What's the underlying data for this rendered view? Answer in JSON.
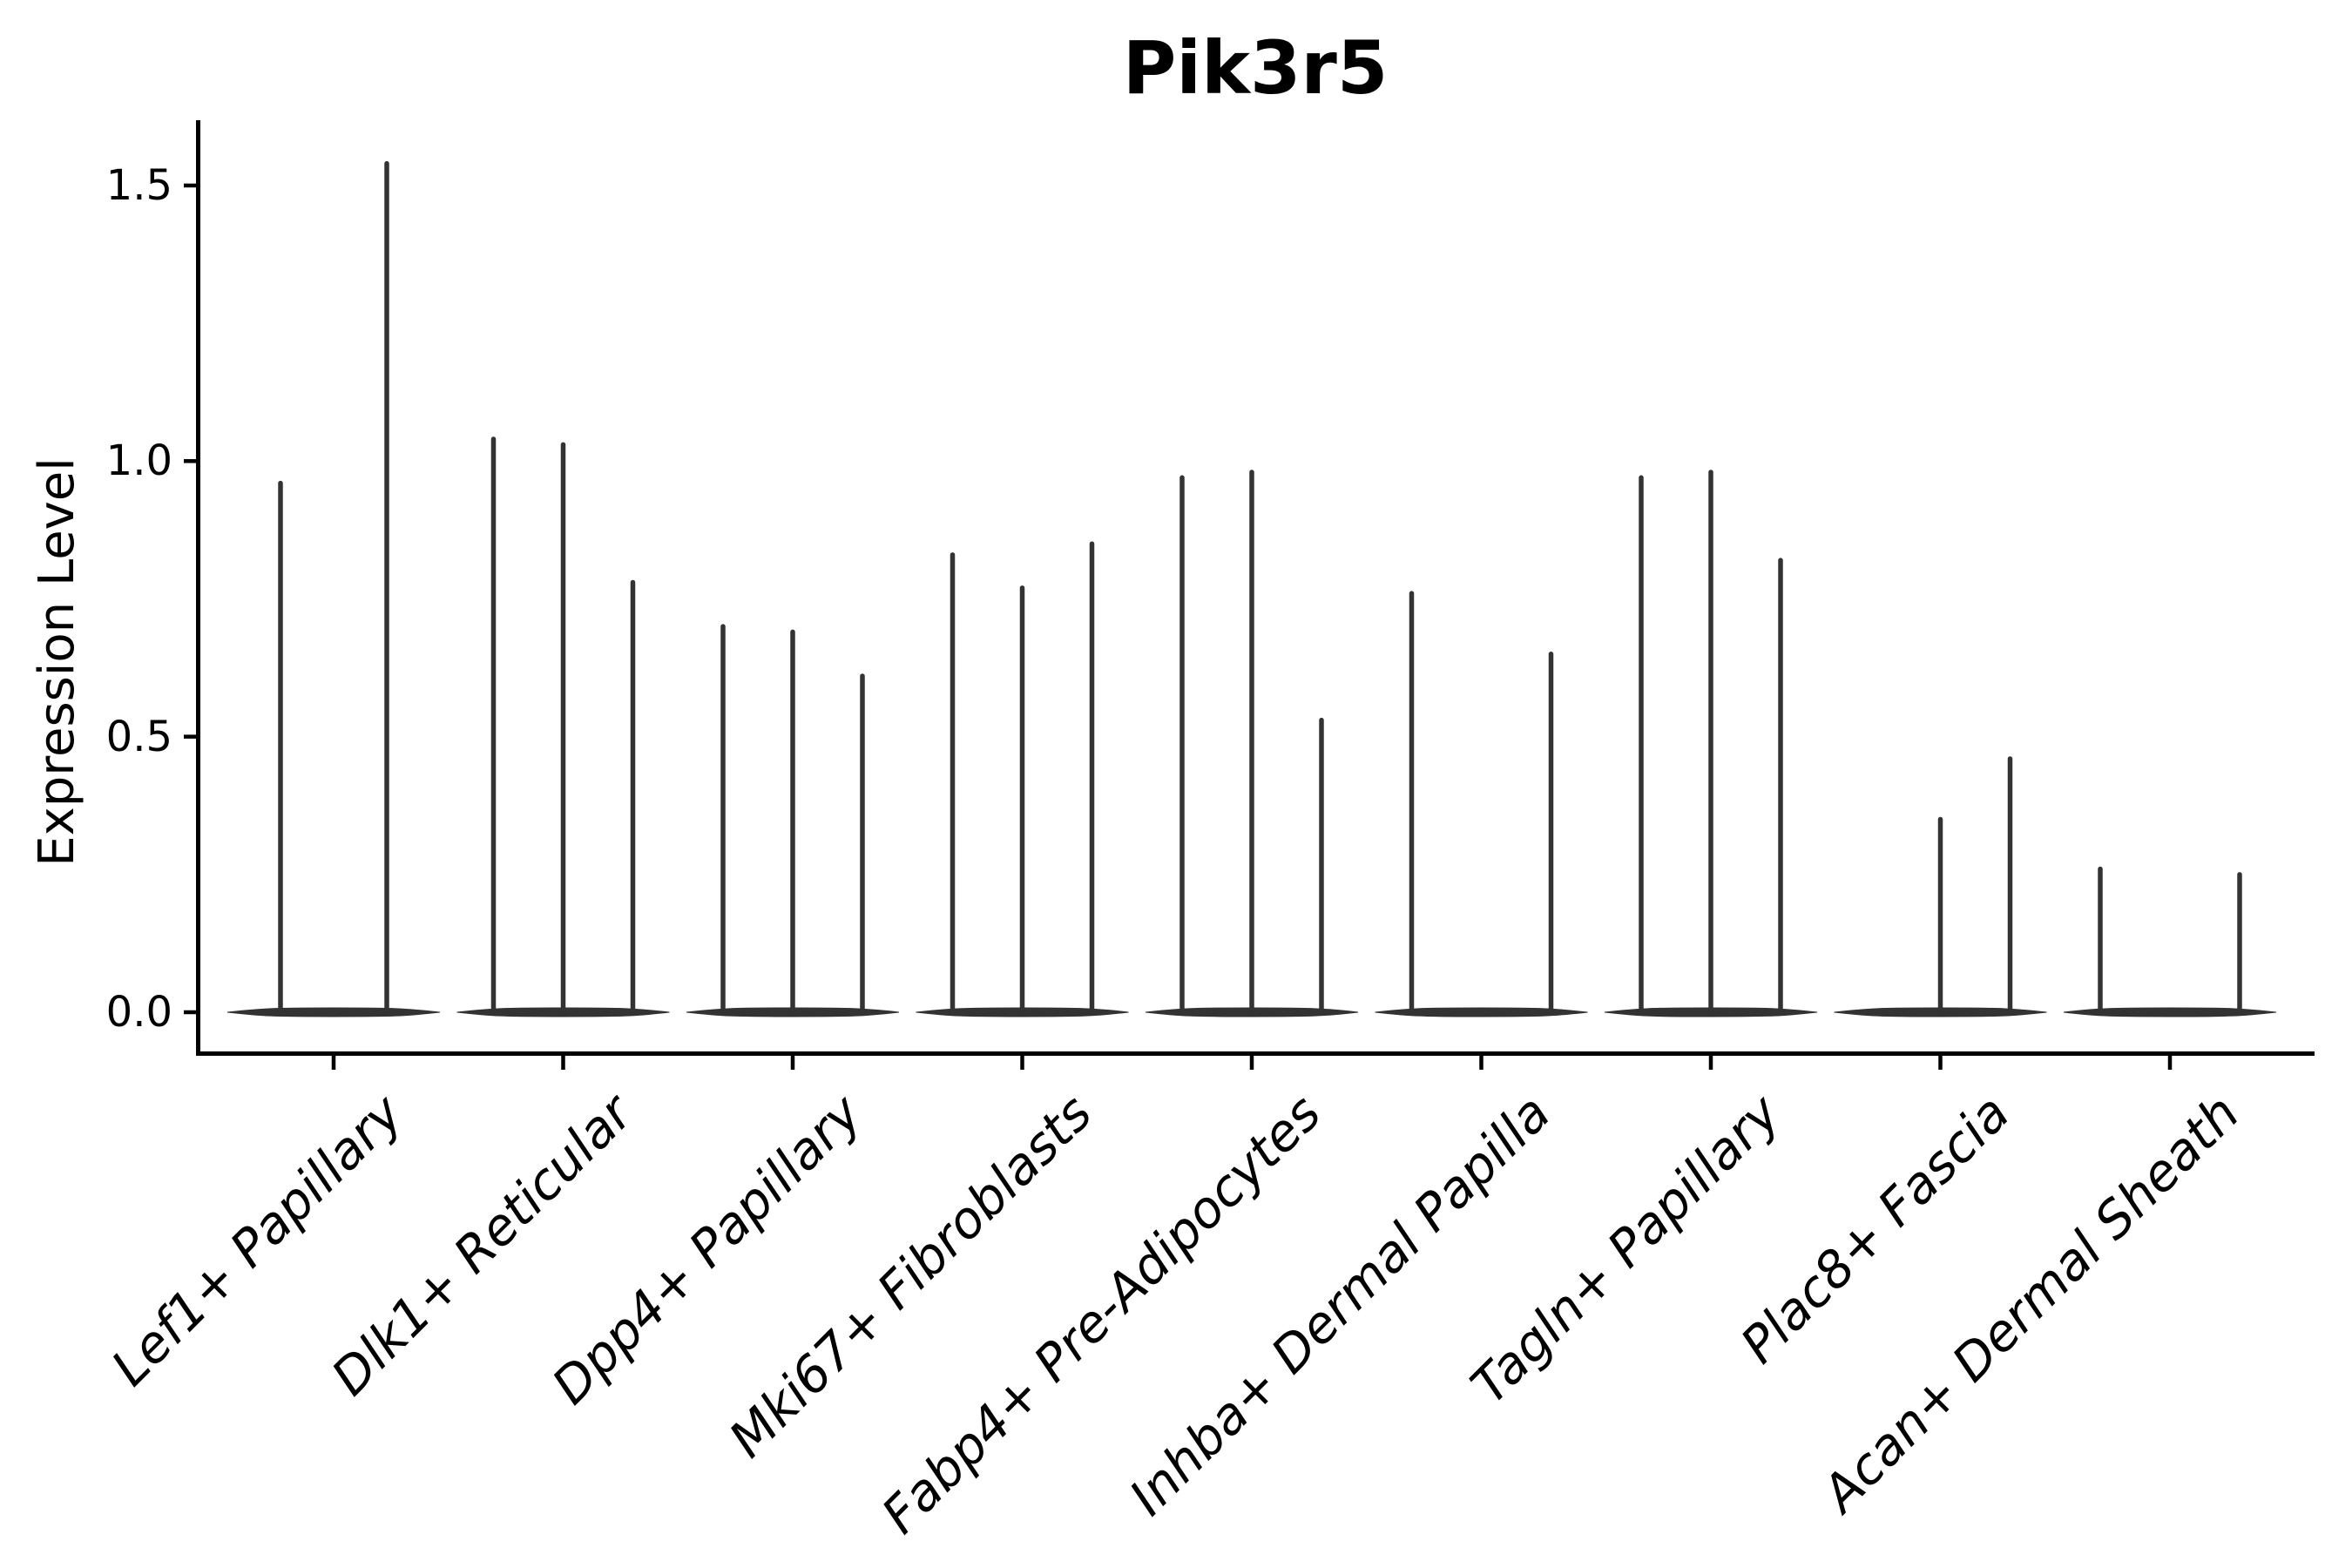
{
  "title": "Pik3r5",
  "ylabel": "Expression Level",
  "ytick_labels": [
    "0.0",
    "0.5",
    "1.0",
    "1.5"
  ],
  "chart_data": {
    "type": "violin",
    "title": "Pik3r5",
    "xlabel": "",
    "ylabel": "Expression Level",
    "ylim": [
      -0.08,
      1.62
    ],
    "yticks": [
      0.0,
      0.5,
      1.0,
      1.5
    ],
    "grid": false,
    "legend": "none",
    "violin_color": "#333333",
    "description": "Very thin collapsed violins: flat lens at 0 per category with narrow vertical spikes; spike max expression values listed per sub-violin (dx = horizontal offset in px from category center).",
    "categories": [
      "Lef1+ Papillary",
      "Dlk1+ Reticular",
      "Dpp4+ Papillary",
      "Mki67+ Fibroblasts",
      "Fabp4+ Pre-Adipocytes",
      "Inhba+ Dermal Papilla",
      "Tagln+ Papillary",
      "Plac8+ Fascia",
      "Acan+ Dermal Sheath"
    ],
    "violins": [
      {
        "category": "Lef1+ Papillary",
        "spikes": [
          {
            "dx": -61,
            "max": 0.96
          },
          {
            "dx": 61,
            "max": 1.54
          }
        ]
      },
      {
        "category": "Dlk1+ Reticular",
        "spikes": [
          {
            "dx": -80,
            "max": 1.04
          },
          {
            "dx": 0,
            "max": 1.03
          },
          {
            "dx": 80,
            "max": 0.78
          }
        ]
      },
      {
        "category": "Dpp4+ Papillary",
        "spikes": [
          {
            "dx": -80,
            "max": 0.7
          },
          {
            "dx": 0,
            "max": 0.69
          },
          {
            "dx": 80,
            "max": 0.61
          }
        ]
      },
      {
        "category": "Mki67+ Fibroblasts",
        "spikes": [
          {
            "dx": -80,
            "max": 0.83
          },
          {
            "dx": 0,
            "max": 0.77
          },
          {
            "dx": 80,
            "max": 0.85
          }
        ]
      },
      {
        "category": "Fabp4+ Pre-Adipocytes",
        "spikes": [
          {
            "dx": -80,
            "max": 0.97
          },
          {
            "dx": 0,
            "max": 0.98
          },
          {
            "dx": 80,
            "max": 0.53
          }
        ]
      },
      {
        "category": "Inhba+ Dermal Papilla",
        "spikes": [
          {
            "dx": -80,
            "max": 0.76
          },
          {
            "dx": 80,
            "max": 0.65
          }
        ]
      },
      {
        "category": "Tagln+ Papillary",
        "spikes": [
          {
            "dx": -80,
            "max": 0.97
          },
          {
            "dx": 0,
            "max": 0.98
          },
          {
            "dx": 80,
            "max": 0.82
          }
        ]
      },
      {
        "category": "Plac8+ Fascia",
        "spikes": [
          {
            "dx": 0,
            "max": 0.35
          },
          {
            "dx": 80,
            "max": 0.46
          }
        ]
      },
      {
        "category": "Acan+ Dermal Sheath",
        "spikes": [
          {
            "dx": -80,
            "max": 0.26
          },
          {
            "dx": 80,
            "max": 0.25
          }
        ]
      }
    ]
  }
}
